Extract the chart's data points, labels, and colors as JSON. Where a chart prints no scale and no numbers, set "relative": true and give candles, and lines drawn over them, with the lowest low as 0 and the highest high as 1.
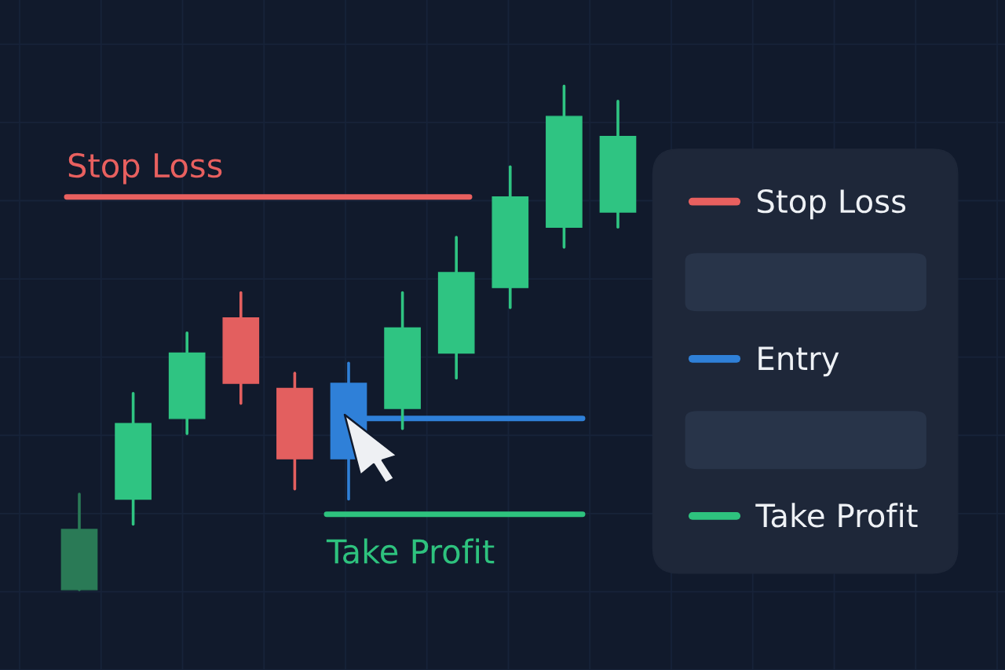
{
  "chart_data": {
    "type": "candlestick",
    "relative": true,
    "categories": [
      null,
      null,
      null,
      null,
      null,
      null,
      null,
      null,
      null,
      null,
      null
    ],
    "ohlc": [
      [
        0,
        0.19,
        0,
        0.12
      ],
      [
        0.18,
        0.39,
        0.13,
        0.33
      ],
      [
        0.34,
        0.51,
        0.31,
        0.47
      ],
      [
        0.54,
        0.59,
        0.37,
        0.41
      ],
      [
        0.4,
        0.43,
        0.2,
        0.26
      ],
      [
        0.26,
        0.45,
        0.18,
        0.41
      ],
      [
        0.36,
        0.59,
        0.32,
        0.52
      ],
      [
        0.47,
        0.7,
        0.42,
        0.63
      ],
      [
        0.6,
        0.84,
        0.56,
        0.78
      ],
      [
        0.72,
        1,
        0.68,
        0.94
      ],
      [
        0.75,
        0.97,
        0.72,
        0.9
      ]
    ],
    "colors": [
      "#2a7a56",
      "#2fc482",
      "#2fc482",
      "#e35f5f",
      "#e35f5f",
      "#2f80d8",
      "#2fc482",
      "#2fc482",
      "#2fc482",
      "#2fc482",
      "#2fc482"
    ],
    "ref_lines": [
      {
        "axis": "y",
        "value": 0.78,
        "label": "Stop Loss",
        "color": "#e8605f"
      },
      {
        "axis": "y",
        "value": 0.34,
        "label": "Entry",
        "color": "#2f80d8"
      },
      {
        "axis": "y",
        "value": 0.15,
        "label": "Take Profit",
        "color": "#2ec27e"
      }
    ],
    "grid": true,
    "legend": "right"
  }
}
